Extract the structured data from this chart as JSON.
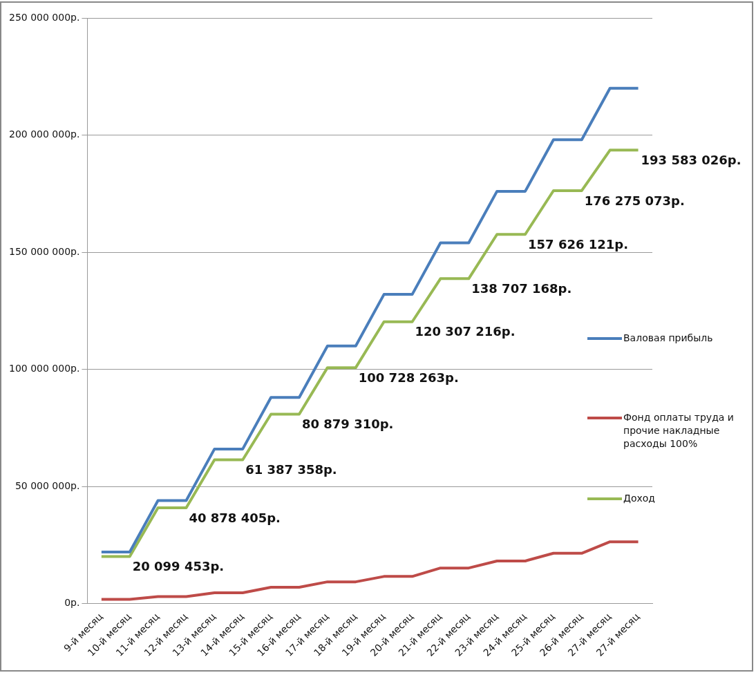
{
  "chart_data": {
    "type": "line",
    "categories": [
      "9-й месяц",
      "10-й месяц",
      "11-й месяц",
      "12-й месяц",
      "13-й месяц",
      "14-й месяц",
      "15-й месяц",
      "16-й месяц",
      "17-й месяц",
      "18-й месяц",
      "19-й месяц",
      "20-й месяц",
      "21-й месяц",
      "22-й месяц",
      "23-й месяц",
      "24-й месяц",
      "25-й месяц",
      "26-й месяц",
      "27-й месяц",
      "27-й месяц"
    ],
    "series": [
      {
        "name": "Валовая прибыль",
        "color": "#4a7ebb",
        "values": [
          22000000,
          22000000,
          44000000,
          44000000,
          66000000,
          66000000,
          88000000,
          88000000,
          110000000,
          110000000,
          132000000,
          132000000,
          154000000,
          154000000,
          176000000,
          176000000,
          198000000,
          198000000,
          220000000,
          220000000
        ]
      },
      {
        "name": "Фонд оплаты труда и прочие накладные расходы 100%",
        "color": "#be4b48",
        "values": [
          1800000,
          1800000,
          3000000,
          3000000,
          4600000,
          4600000,
          7000000,
          7000000,
          9300000,
          9300000,
          11600000,
          11600000,
          15200000,
          15200000,
          18200000,
          18200000,
          21500000,
          21500000,
          26400000,
          26400000
        ]
      },
      {
        "name": "Доход",
        "color": "#98b954",
        "values": [
          20099453,
          20099453,
          40878405,
          40878405,
          61387358,
          61387358,
          80879310,
          80879310,
          100728263,
          100728263,
          120307216,
          120307216,
          138707168,
          138707168,
          157626121,
          157626121,
          176275073,
          176275073,
          193583026,
          193583026
        ],
        "value_labels": [
          null,
          "20 099 453р.",
          null,
          "40 878 405р.",
          null,
          "61 387 358р.",
          null,
          "80 879 310р.",
          null,
          "100 728 263р.",
          null,
          "120 307 216р.",
          null,
          "138 707 168р.",
          null,
          "157 626 121р.",
          null,
          "176 275 073р.",
          null,
          "193 583 026р."
        ]
      }
    ],
    "ylim": [
      0,
      250000000
    ],
    "yticks": [
      {
        "value": 0,
        "label": "0р."
      },
      {
        "value": 50000000,
        "label": "50 000 000р."
      },
      {
        "value": 100000000,
        "label": "100 000 000р."
      },
      {
        "value": 150000000,
        "label": "150 000 000р."
      },
      {
        "value": 200000000,
        "label": "200 000 000р."
      },
      {
        "value": 250000000,
        "label": "250 000 000р."
      }
    ],
    "grid": "y",
    "legend": "right",
    "marker": "none",
    "line_style": "solid"
  }
}
